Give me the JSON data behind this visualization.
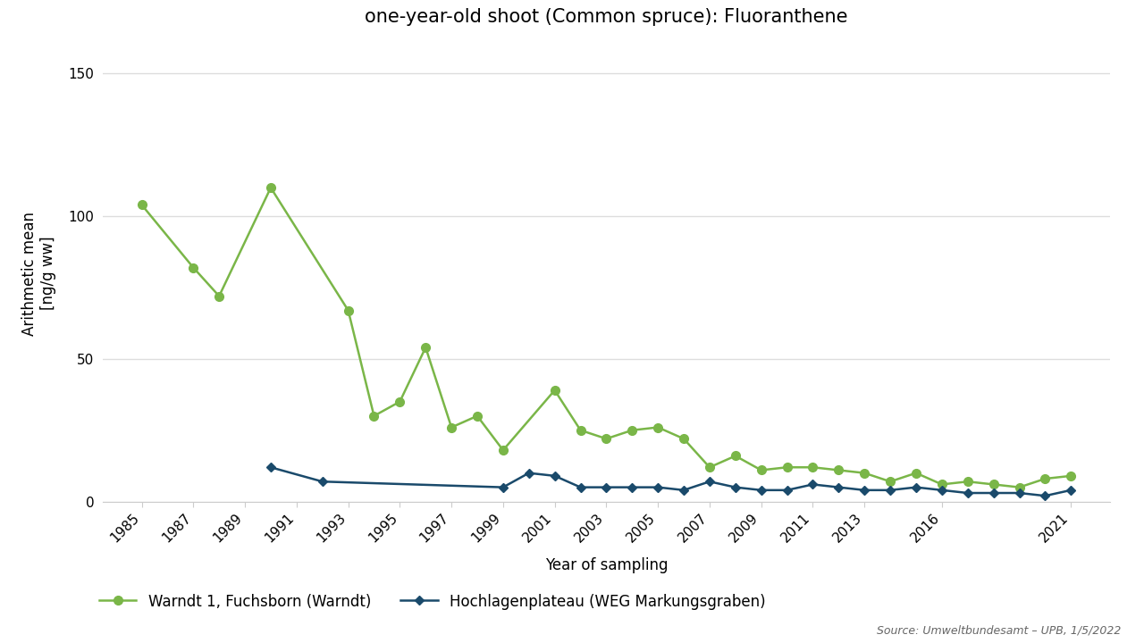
{
  "title": "one-year-old shoot (Common spruce): Fluoranthene",
  "xlabel": "Year of sampling",
  "ylabel": "Arithmetic mean\n[ng/g ww]",
  "source": "Source: Umweltbundesamt – UPB, 1/5/2022",
  "ylim": [
    0,
    160
  ],
  "yticks": [
    0,
    50,
    100,
    150
  ],
  "background_color": "#ffffff",
  "plot_bg_color": "#ffffff",
  "grid_color": "#dddddd",
  "series1": {
    "label": "Warndt 1, Fuchsborn (Warndt)",
    "color": "#7ab648",
    "marker": "o",
    "markersize": 7,
    "linewidth": 1.8,
    "years": [
      1985,
      1987,
      1988,
      1990,
      1993,
      1994,
      1995,
      1996,
      1997,
      1998,
      1999,
      2001,
      2002,
      2003,
      2004,
      2005,
      2006,
      2007,
      2008,
      2009,
      2010,
      2011,
      2012,
      2013,
      2014,
      2015,
      2016,
      2017,
      2018,
      2019,
      2020,
      2021
    ],
    "values": [
      104,
      82,
      72,
      110,
      67,
      30,
      35,
      54,
      26,
      30,
      18,
      39,
      25,
      22,
      25,
      26,
      22,
      12,
      16,
      11,
      12,
      12,
      11,
      10,
      7,
      10,
      6,
      7,
      6,
      5,
      8,
      9
    ]
  },
  "series2": {
    "label": "Hochlagenplateau (WEG Markungsgraben)",
    "color": "#1a4a6b",
    "marker": "D",
    "markersize": 5,
    "linewidth": 1.8,
    "years": [
      1990,
      1992,
      1999,
      2000,
      2001,
      2002,
      2003,
      2004,
      2005,
      2006,
      2007,
      2008,
      2009,
      2010,
      2011,
      2012,
      2013,
      2014,
      2015,
      2016,
      2017,
      2018,
      2019,
      2020,
      2021
    ],
    "values": [
      12,
      7,
      5,
      10,
      9,
      5,
      5,
      5,
      5,
      4,
      7,
      5,
      4,
      4,
      6,
      5,
      4,
      4,
      5,
      4,
      3,
      3,
      3,
      2,
      4
    ]
  },
  "xtick_labels": [
    "1985",
    "1987",
    "1989",
    "1991",
    "1993",
    "1995",
    "1997",
    "1999",
    "2001",
    "2003",
    "2005",
    "2007",
    "2009",
    "2011",
    "2013",
    "2016",
    "2021"
  ],
  "xtick_positions": [
    1985,
    1987,
    1989,
    1991,
    1993,
    1995,
    1997,
    1999,
    2001,
    2003,
    2005,
    2007,
    2009,
    2011,
    2013,
    2016,
    2021
  ],
  "xlim": [
    1983.5,
    2022.5
  ]
}
